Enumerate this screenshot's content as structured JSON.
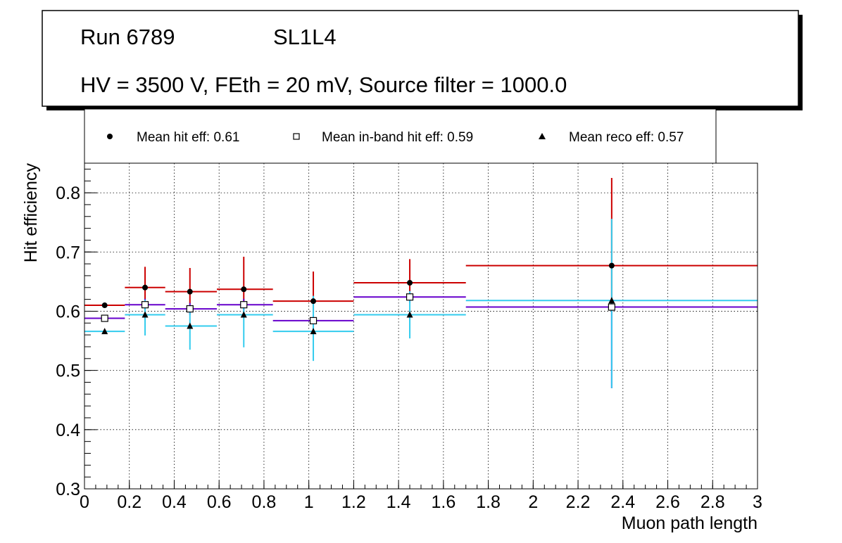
{
  "header": {
    "run": "Run 6789",
    "layer": "SL1L4",
    "conditions": "HV = 3500 V, FEth = 20 mV, Source filter = 1000.0"
  },
  "legend": {
    "items": [
      {
        "label": "Mean hit  eff: 0.61",
        "marker": "filled-circle",
        "color": "#000000"
      },
      {
        "label": "Mean in-band hit eff: 0.59",
        "marker": "open-square",
        "color": "#000000"
      },
      {
        "label": "Mean reco eff: 0.57",
        "marker": "filled-triangle",
        "color": "#000000"
      }
    ]
  },
  "chart_data": {
    "type": "scatter",
    "title": "",
    "xlabel": "Muon path length",
    "ylabel": "Hit efficiency",
    "xlim": [
      0,
      3
    ],
    "ylim": [
      0.3,
      0.85
    ],
    "grid": true,
    "x_ticks": [
      0,
      0.2,
      0.4,
      0.6,
      0.8,
      1,
      1.2,
      1.4,
      1.6,
      1.8,
      2,
      2.2,
      2.4,
      2.6,
      2.8,
      3
    ],
    "x_tick_labels": [
      "0",
      "0.2",
      "0.4",
      "0.6",
      "0.8",
      "1",
      "1.2",
      "1.4",
      "1.6",
      "1.8",
      "2",
      "2.2",
      "2.4",
      "2.6",
      "2.8",
      "3"
    ],
    "y_ticks": [
      0.3,
      0.4,
      0.5,
      0.6,
      0.7,
      0.8
    ],
    "y_tick_labels": [
      "0.3",
      "0.4",
      "0.5",
      "0.6",
      "0.7",
      "0.8"
    ],
    "bins": [
      [
        0,
        0.18
      ],
      [
        0.18,
        0.36
      ],
      [
        0.36,
        0.59
      ],
      [
        0.59,
        0.84
      ],
      [
        0.84,
        1.2
      ],
      [
        1.2,
        1.7
      ],
      [
        1.7,
        3.0
      ]
    ],
    "series": [
      {
        "name": "Hit efficiency",
        "marker": "filled-circle",
        "color": "#cc0000",
        "x": [
          0.09,
          0.27,
          0.47,
          0.71,
          1.02,
          1.45,
          2.35
        ],
        "y": [
          0.61,
          0.64,
          0.633,
          0.637,
          0.617,
          0.648,
          0.677
        ],
        "yerr_low": [
          0.003,
          0.02,
          0.02,
          0.025,
          0.02,
          0.02,
          0.06
        ],
        "yerr_high": [
          0.003,
          0.035,
          0.04,
          0.055,
          0.05,
          0.04,
          0.148
        ]
      },
      {
        "name": "In-band hit efficiency",
        "marker": "open-square",
        "color": "#6600cc",
        "x": [
          0.09,
          0.27,
          0.47,
          0.71,
          1.02,
          1.45,
          2.35
        ],
        "y": [
          0.588,
          0.611,
          0.604,
          0.611,
          0.584,
          0.624,
          0.607
        ],
        "yerr_low": [
          0.003,
          0.01,
          0.01,
          0.01,
          0.01,
          0.01,
          0.137
        ],
        "yerr_high": [
          0.003,
          0.01,
          0.01,
          0.01,
          0.01,
          0.01,
          0.01
        ]
      },
      {
        "name": "Reco efficiency",
        "marker": "filled-triangle",
        "color": "#33ccee",
        "x": [
          0.09,
          0.27,
          0.47,
          0.71,
          1.02,
          1.45,
          2.35
        ],
        "y": [
          0.566,
          0.594,
          0.575,
          0.594,
          0.566,
          0.594,
          0.618
        ],
        "yerr_low": [
          0.003,
          0.035,
          0.04,
          0.055,
          0.05,
          0.04,
          0.148
        ],
        "yerr_high": [
          0.003,
          0.025,
          0.03,
          0.02,
          0.06,
          0.04,
          0.138
        ]
      }
    ]
  }
}
